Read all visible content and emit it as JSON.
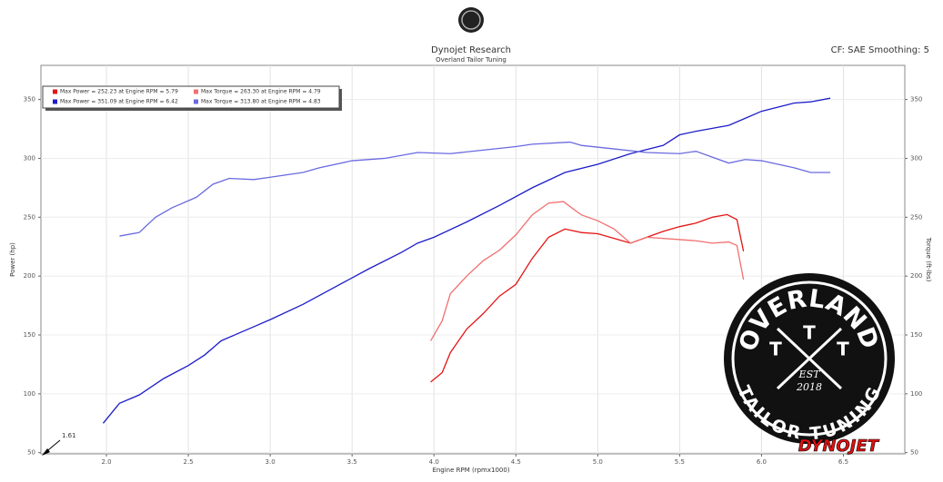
{
  "chart_data": {
    "type": "line",
    "title": "Dynojet Research",
    "subtitle": "Overland Tailor Tuning",
    "corner_note": "CF: SAE Smoothing: 5",
    "x_label": "Engine RPM (rpmx1000)",
    "y_label": "Power (hp)",
    "y2_label": "Torque (ft-lbs)",
    "x_start_label": "1.61",
    "xlim": [
      1.6,
      6.875
    ],
    "xticks": [
      {
        "value": 2,
        "label": "2.0"
      },
      {
        "value": 2.5,
        "label": "2.5"
      },
      {
        "value": 3,
        "label": "3.0"
      },
      {
        "value": 3.5,
        "label": "3.5"
      },
      {
        "value": 4,
        "label": "4.0"
      },
      {
        "value": 4.5,
        "label": "4.5"
      },
      {
        "value": 5,
        "label": "5.0"
      },
      {
        "value": 5.5,
        "label": "5.5"
      },
      {
        "value": 6,
        "label": "6.0"
      },
      {
        "value": 6.5,
        "label": "6.5"
      }
    ],
    "ylim": [
      49,
      379
    ],
    "yticks": [
      50,
      100,
      150,
      200,
      250,
      300,
      350
    ],
    "y2lim": [
      49,
      379
    ],
    "y2ticks": [
      50,
      100,
      150,
      200,
      250,
      300,
      350
    ],
    "grid": true,
    "legend": "top-left",
    "series": [
      {
        "name": "Max Power = 252.23 at Engine RPM = 5.79",
        "color": "#e41414",
        "x": [
          3.98,
          4.05,
          4.1,
          4.2,
          4.3,
          4.4,
          4.5,
          4.6,
          4.7,
          4.8,
          4.9,
          5.0,
          5.1,
          5.2,
          5.3,
          5.4,
          5.5,
          5.6,
          5.7,
          5.79,
          5.85,
          5.89
        ],
        "values": [
          110,
          118,
          135,
          155,
          168,
          183,
          193,
          215,
          233,
          240,
          237,
          236,
          232,
          228,
          233,
          238,
          242,
          245,
          250,
          252.23,
          248,
          221
        ]
      },
      {
        "name": "Max Torque = 263.30 at Engine RPM = 4.79",
        "color": "#f07070",
        "axis": "y2",
        "x": [
          3.98,
          4.05,
          4.1,
          4.2,
          4.3,
          4.4,
          4.5,
          4.6,
          4.7,
          4.79,
          4.9,
          5.0,
          5.1,
          5.2,
          5.3,
          5.5,
          5.6,
          5.7,
          5.8,
          5.85,
          5.89
        ],
        "values": [
          145,
          162,
          185,
          200,
          213,
          222,
          235,
          252,
          262,
          263.3,
          252,
          247,
          240,
          228,
          233,
          231,
          230,
          228,
          229,
          226,
          197
        ]
      },
      {
        "name": "Max Power = 351.09 at Engine RPM = 6.42",
        "color": "#1c1cc8",
        "x": [
          1.98,
          2.08,
          2.2,
          2.35,
          2.5,
          2.6,
          2.7,
          2.8,
          2.9,
          3.0,
          3.2,
          3.4,
          3.6,
          3.8,
          3.9,
          4.0,
          4.2,
          4.4,
          4.6,
          4.8,
          5.0,
          5.2,
          5.4,
          5.5,
          5.6,
          5.8,
          5.9,
          6.0,
          6.2,
          6.3,
          6.42
        ],
        "values": [
          75,
          92,
          99,
          113,
          124,
          133,
          145,
          151,
          157,
          163,
          176,
          191,
          206,
          220,
          228,
          233,
          246,
          260,
          275,
          288,
          295,
          304,
          311,
          320,
          323,
          328,
          334,
          340,
          347,
          348,
          351.09
        ]
      },
      {
        "name": "Max Torque = 313.80 at Engine RPM = 4.83",
        "color": "#6a6ae0",
        "axis": "y2",
        "x": [
          2.08,
          2.2,
          2.3,
          2.4,
          2.55,
          2.65,
          2.75,
          2.9,
          3.0,
          3.2,
          3.3,
          3.5,
          3.7,
          3.9,
          4.1,
          4.3,
          4.5,
          4.6,
          4.83,
          4.9,
          5.1,
          5.3,
          5.5,
          5.6,
          5.8,
          5.9,
          6.0,
          6.2,
          6.3,
          6.42
        ],
        "values": [
          234,
          237,
          250,
          258,
          267,
          278,
          283,
          282,
          284,
          288,
          292,
          298,
          300,
          305,
          304,
          307,
          310,
          312,
          313.8,
          311,
          308,
          305,
          304,
          306,
          296,
          299,
          298,
          292,
          288,
          288
        ]
      }
    ]
  },
  "branding": {
    "badge_top": "OVERLAND",
    "badge_letter_left": "T",
    "badge_letter_right": "T",
    "badge_est": "EST",
    "badge_year": "2018",
    "badge_bottom": "TAILOR TUNING",
    "maker": "DYNOJET"
  }
}
